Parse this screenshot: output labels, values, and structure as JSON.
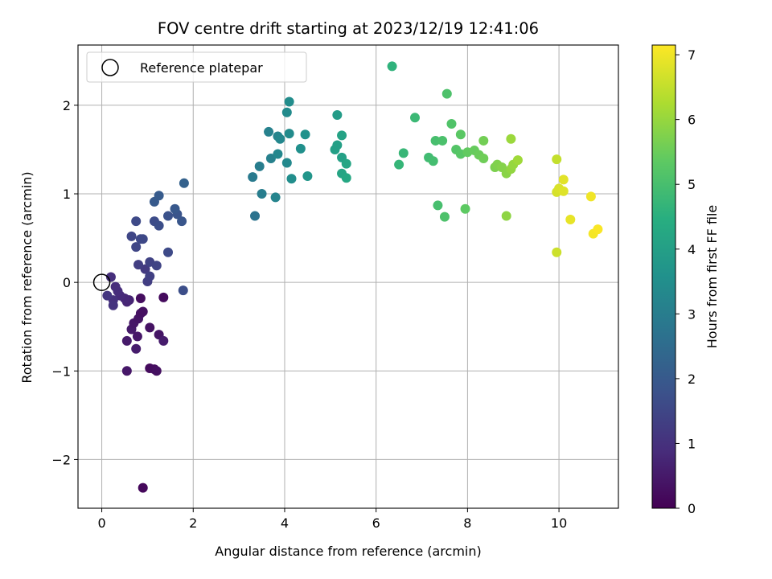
{
  "chart_data": {
    "type": "scatter",
    "title": "FOV centre drift starting at 2023/12/19 12:41:06",
    "xlabel": "Angular distance from reference (arcmin)",
    "ylabel": "Rotation from reference (arcmin)",
    "xlim": [
      -0.52,
      11.3
    ],
    "ylim": [
      -2.55,
      2.68
    ],
    "xticks": [
      0,
      2,
      4,
      6,
      8,
      10
    ],
    "yticks": [
      -2,
      -1,
      0,
      1,
      2
    ],
    "xtick_labels": [
      "0",
      "2",
      "4",
      "6",
      "8",
      "10"
    ],
    "ytick_labels": [
      "−2",
      "−1",
      "0",
      "1",
      "2"
    ],
    "grid": true,
    "legend": {
      "placement": "top-left",
      "label": "Reference platepar",
      "marker": "hollow circle"
    },
    "reference_point": {
      "x": 0,
      "y": 0
    },
    "colorbar": {
      "label": "Hours from first FF file",
      "colormap": "viridis",
      "range": [
        0,
        7.15
      ],
      "ticks": [
        0,
        1,
        2,
        3,
        4,
        5,
        6,
        7
      ],
      "tick_labels": [
        "0",
        "1",
        "2",
        "3",
        "4",
        "5",
        "6",
        "7"
      ]
    },
    "series": [
      {
        "values": [
          {
            "x": 0.9,
            "y": -2.32,
            "c": 0.15
          },
          {
            "x": 1.05,
            "y": -0.97,
            "c": 0.2
          },
          {
            "x": 1.15,
            "y": -0.98,
            "c": 0.25
          },
          {
            "x": 1.2,
            "y": -1.0,
            "c": 0.3
          },
          {
            "x": 0.55,
            "y": -1.0,
            "c": 0.45
          },
          {
            "x": 1.05,
            "y": -0.51,
            "c": 0.35
          },
          {
            "x": 1.25,
            "y": -0.59,
            "c": 0.4
          },
          {
            "x": 1.35,
            "y": -0.66,
            "c": 0.55
          },
          {
            "x": 0.75,
            "y": -0.75,
            "c": 0.55
          },
          {
            "x": 0.55,
            "y": -0.66,
            "c": 0.5
          },
          {
            "x": 0.65,
            "y": -0.53,
            "c": 0.5
          },
          {
            "x": 0.78,
            "y": -0.61,
            "c": 0.45
          },
          {
            "x": 0.7,
            "y": -0.46,
            "c": 0.45
          },
          {
            "x": 0.8,
            "y": -0.41,
            "c": 0.4
          },
          {
            "x": 0.85,
            "y": -0.35,
            "c": 0.35
          },
          {
            "x": 0.9,
            "y": -0.33,
            "c": 0.3
          },
          {
            "x": 0.85,
            "y": -0.18,
            "c": 0.25
          },
          {
            "x": 1.35,
            "y": -0.17,
            "c": 0.2
          },
          {
            "x": 0.6,
            "y": -0.2,
            "c": 0.7
          },
          {
            "x": 0.55,
            "y": -0.22,
            "c": 0.75
          },
          {
            "x": 0.5,
            "y": -0.18,
            "c": 0.8
          },
          {
            "x": 0.4,
            "y": -0.15,
            "c": 0.85
          },
          {
            "x": 0.35,
            "y": -0.1,
            "c": 0.9
          },
          {
            "x": 0.3,
            "y": -0.05,
            "c": 0.9
          },
          {
            "x": 0.25,
            "y": -0.2,
            "c": 1.0
          },
          {
            "x": 0.2,
            "y": 0.06,
            "c": 0.95
          },
          {
            "x": 0.25,
            "y": -0.26,
            "c": 1.05
          },
          {
            "x": 0.12,
            "y": -0.15,
            "c": 1.1
          },
          {
            "x": 0.95,
            "y": 0.15,
            "c": 1.2
          },
          {
            "x": 0.8,
            "y": 0.2,
            "c": 1.3
          },
          {
            "x": 1.0,
            "y": 0.01,
            "c": 1.3
          },
          {
            "x": 1.05,
            "y": 0.07,
            "c": 1.35
          },
          {
            "x": 1.05,
            "y": 0.23,
            "c": 1.4
          },
          {
            "x": 1.2,
            "y": 0.19,
            "c": 1.45
          },
          {
            "x": 0.75,
            "y": 0.4,
            "c": 1.5
          },
          {
            "x": 0.65,
            "y": 0.52,
            "c": 1.5
          },
          {
            "x": 0.85,
            "y": 0.49,
            "c": 1.55
          },
          {
            "x": 0.9,
            "y": 0.49,
            "c": 1.55
          },
          {
            "x": 1.45,
            "y": 0.34,
            "c": 1.6
          },
          {
            "x": 1.78,
            "y": -0.09,
            "c": 1.7
          },
          {
            "x": 0.75,
            "y": 0.69,
            "c": 1.6
          },
          {
            "x": 1.15,
            "y": 0.69,
            "c": 1.65
          },
          {
            "x": 1.25,
            "y": 0.64,
            "c": 1.7
          },
          {
            "x": 1.45,
            "y": 0.75,
            "c": 1.8
          },
          {
            "x": 1.65,
            "y": 0.77,
            "c": 1.85
          },
          {
            "x": 1.75,
            "y": 0.69,
            "c": 1.9
          },
          {
            "x": 1.6,
            "y": 0.83,
            "c": 1.95
          },
          {
            "x": 1.15,
            "y": 0.91,
            "c": 2.0
          },
          {
            "x": 1.25,
            "y": 0.98,
            "c": 2.05
          },
          {
            "x": 1.8,
            "y": 1.12,
            "c": 2.2
          },
          {
            "x": 3.35,
            "y": 0.75,
            "c": 2.7
          },
          {
            "x": 3.3,
            "y": 1.19,
            "c": 2.9
          },
          {
            "x": 3.45,
            "y": 1.31,
            "c": 3.0
          },
          {
            "x": 3.5,
            "y": 1.0,
            "c": 3.0
          },
          {
            "x": 3.65,
            "y": 1.7,
            "c": 3.1
          },
          {
            "x": 3.7,
            "y": 1.4,
            "c": 3.1
          },
          {
            "x": 3.8,
            "y": 0.96,
            "c": 3.2
          },
          {
            "x": 3.85,
            "y": 1.65,
            "c": 3.2
          },
          {
            "x": 3.85,
            "y": 1.45,
            "c": 3.3
          },
          {
            "x": 3.9,
            "y": 1.62,
            "c": 3.3
          },
          {
            "x": 4.05,
            "y": 1.35,
            "c": 3.35
          },
          {
            "x": 4.1,
            "y": 1.68,
            "c": 3.4
          },
          {
            "x": 4.05,
            "y": 1.92,
            "c": 3.4
          },
          {
            "x": 4.1,
            "y": 2.04,
            "c": 3.45
          },
          {
            "x": 4.15,
            "y": 1.17,
            "c": 3.5
          },
          {
            "x": 4.35,
            "y": 1.51,
            "c": 3.55
          },
          {
            "x": 4.45,
            "y": 1.67,
            "c": 3.6
          },
          {
            "x": 4.5,
            "y": 1.2,
            "c": 3.7
          },
          {
            "x": 5.15,
            "y": 1.89,
            "c": 3.9
          },
          {
            "x": 5.1,
            "y": 1.5,
            "c": 4.0
          },
          {
            "x": 5.15,
            "y": 1.55,
            "c": 4.0
          },
          {
            "x": 5.25,
            "y": 1.41,
            "c": 4.05
          },
          {
            "x": 5.25,
            "y": 1.66,
            "c": 4.1
          },
          {
            "x": 5.25,
            "y": 1.23,
            "c": 4.15
          },
          {
            "x": 5.35,
            "y": 1.34,
            "c": 4.2
          },
          {
            "x": 5.35,
            "y": 1.18,
            "c": 4.25
          },
          {
            "x": 6.35,
            "y": 2.44,
            "c": 4.6
          },
          {
            "x": 6.5,
            "y": 1.33,
            "c": 4.7
          },
          {
            "x": 6.6,
            "y": 1.46,
            "c": 4.75
          },
          {
            "x": 6.85,
            "y": 1.86,
            "c": 4.8
          },
          {
            "x": 7.15,
            "y": 1.41,
            "c": 4.9
          },
          {
            "x": 7.25,
            "y": 1.37,
            "c": 4.95
          },
          {
            "x": 7.3,
            "y": 1.6,
            "c": 5.0
          },
          {
            "x": 7.35,
            "y": 0.87,
            "c": 5.0
          },
          {
            "x": 7.45,
            "y": 1.6,
            "c": 5.05
          },
          {
            "x": 7.5,
            "y": 0.74,
            "c": 5.1
          },
          {
            "x": 7.55,
            "y": 2.13,
            "c": 5.1
          },
          {
            "x": 7.65,
            "y": 1.79,
            "c": 5.15
          },
          {
            "x": 7.75,
            "y": 1.5,
            "c": 5.2
          },
          {
            "x": 7.85,
            "y": 1.45,
            "c": 5.25
          },
          {
            "x": 7.85,
            "y": 1.67,
            "c": 5.3
          },
          {
            "x": 7.95,
            "y": 0.83,
            "c": 5.35
          },
          {
            "x": 8.0,
            "y": 1.47,
            "c": 5.4
          },
          {
            "x": 8.15,
            "y": 1.49,
            "c": 5.45
          },
          {
            "x": 8.25,
            "y": 1.44,
            "c": 5.5
          },
          {
            "x": 8.35,
            "y": 1.4,
            "c": 5.55
          },
          {
            "x": 8.35,
            "y": 1.6,
            "c": 5.6
          },
          {
            "x": 8.6,
            "y": 1.3,
            "c": 5.7
          },
          {
            "x": 8.65,
            "y": 1.33,
            "c": 5.75
          },
          {
            "x": 8.75,
            "y": 1.3,
            "c": 5.8
          },
          {
            "x": 8.85,
            "y": 1.23,
            "c": 5.85
          },
          {
            "x": 8.85,
            "y": 0.75,
            "c": 5.9
          },
          {
            "x": 8.95,
            "y": 1.28,
            "c": 5.95
          },
          {
            "x": 9.0,
            "y": 1.33,
            "c": 6.0
          },
          {
            "x": 8.95,
            "y": 1.62,
            "c": 6.05
          },
          {
            "x": 9.1,
            "y": 1.38,
            "c": 6.1
          },
          {
            "x": 9.95,
            "y": 1.39,
            "c": 6.5
          },
          {
            "x": 9.95,
            "y": 0.34,
            "c": 6.6
          },
          {
            "x": 9.95,
            "y": 1.02,
            "c": 6.7
          },
          {
            "x": 10.0,
            "y": 1.06,
            "c": 6.75
          },
          {
            "x": 10.1,
            "y": 1.03,
            "c": 6.8
          },
          {
            "x": 10.1,
            "y": 1.16,
            "c": 6.85
          },
          {
            "x": 10.25,
            "y": 0.71,
            "c": 6.9
          },
          {
            "x": 10.7,
            "y": 0.97,
            "c": 7.0
          },
          {
            "x": 10.75,
            "y": 0.55,
            "c": 7.05
          },
          {
            "x": 10.85,
            "y": 0.6,
            "c": 7.1
          }
        ]
      }
    ]
  }
}
